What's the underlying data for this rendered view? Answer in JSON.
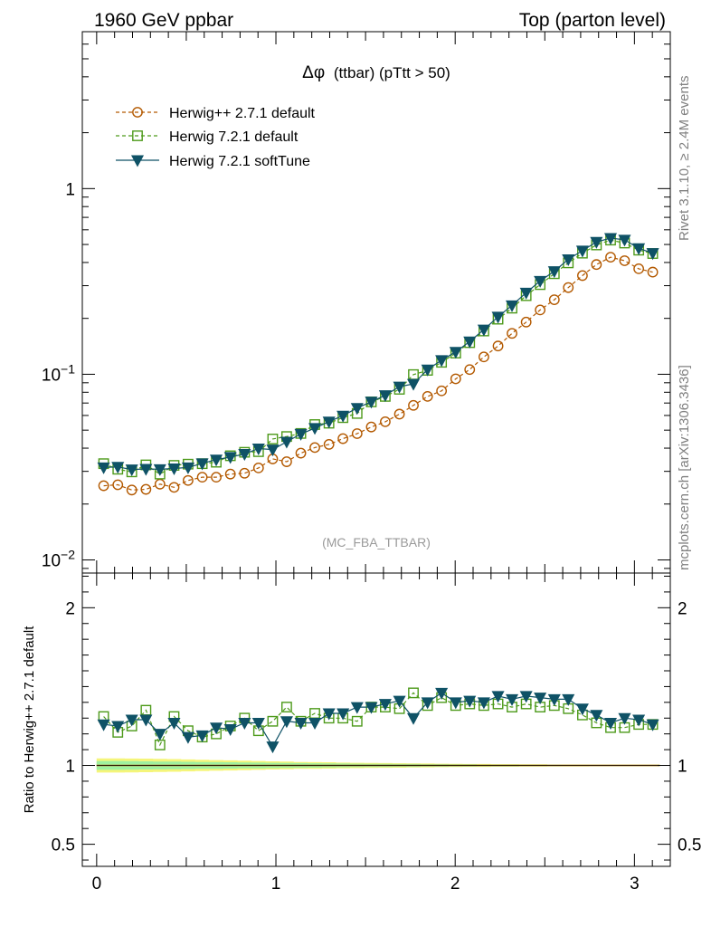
{
  "header": {
    "left": "1960 GeV ppbar",
    "right": "Top (parton level)"
  },
  "side": {
    "rivet": "Rivet 3.1.10, ≥ 2.4M events",
    "mcplots": "mcplots.cern.ch [arXiv:1306.3436]"
  },
  "plot_title": {
    "symbol": "Δφ",
    "text": "(ttbar) (pTtt > 50)"
  },
  "analysis_label": "(MC_FBA_TTBAR)",
  "ratio_ylabel": "Ratio to Herwig++ 2.7.1 default",
  "colors": {
    "herwigpp": "#b35900",
    "herwig721": "#4d9a1a",
    "softtune": "#0f5266",
    "band_outer": "#f5f57a",
    "band_inner": "#9ef0a0"
  },
  "chart_data": [
    {
      "type": "line",
      "panel": "main",
      "yscale": "log",
      "xlim": [
        -0.08,
        3.2
      ],
      "ylim": [
        0.0085,
        7.0
      ],
      "yticks": [
        {
          "value": 0.01,
          "base": "10",
          "exp": "−2"
        },
        {
          "value": 0.1,
          "base": "10",
          "exp": "−1"
        },
        {
          "value": 1,
          "label": "1"
        }
      ],
      "legend_position": "top-left",
      "x": [
        0.039,
        0.118,
        0.196,
        0.275,
        0.353,
        0.432,
        0.51,
        0.589,
        0.667,
        0.746,
        0.825,
        0.903,
        0.982,
        1.06,
        1.139,
        1.217,
        1.296,
        1.374,
        1.453,
        1.532,
        1.61,
        1.689,
        1.767,
        1.846,
        1.924,
        2.003,
        2.081,
        2.16,
        2.239,
        2.317,
        2.396,
        2.474,
        2.553,
        2.631,
        2.71,
        2.788,
        2.867,
        2.945,
        3.024,
        3.102
      ],
      "series": [
        {
          "name": "Herwig++ 2.7.1 default",
          "marker": "circle",
          "linestyle": "dashed",
          "values": [
            0.0251,
            0.0254,
            0.0238,
            0.024,
            0.0256,
            0.0246,
            0.0268,
            0.0279,
            0.0279,
            0.029,
            0.0293,
            0.0313,
            0.035,
            0.0338,
            0.0376,
            0.0403,
            0.0419,
            0.045,
            0.0479,
            0.052,
            0.0555,
            0.061,
            0.068,
            0.076,
            0.0814,
            0.0945,
            0.106,
            0.124,
            0.142,
            0.166,
            0.191,
            0.222,
            0.252,
            0.293,
            0.34,
            0.39,
            0.427,
            0.409,
            0.37,
            0.355
          ]
        },
        {
          "name": "Herwig 7.2.1 default",
          "marker": "open-square",
          "linestyle": "dashed",
          "values": [
            0.033,
            0.0308,
            0.0298,
            0.0325,
            0.029,
            0.0323,
            0.0328,
            0.033,
            0.0336,
            0.0364,
            0.038,
            0.0383,
            0.0448,
            0.0462,
            0.048,
            0.0536,
            0.0545,
            0.0584,
            0.0615,
            0.071,
            0.076,
            0.083,
            0.0996,
            0.105,
            0.116,
            0.13,
            0.148,
            0.171,
            0.198,
            0.227,
            0.265,
            0.304,
            0.348,
            0.398,
            0.449,
            0.497,
            0.528,
            0.509,
            0.466,
            0.447
          ]
        },
        {
          "name": "Herwig 7.2.1 softTune",
          "marker": "filled-triangle-down",
          "linestyle": "solid",
          "values": [
            0.0315,
            0.0317,
            0.0307,
            0.0309,
            0.0308,
            0.0311,
            0.0315,
            0.0331,
            0.0347,
            0.0358,
            0.0372,
            0.0398,
            0.0393,
            0.0433,
            0.0477,
            0.0513,
            0.0556,
            0.0598,
            0.0658,
            0.0711,
            0.0771,
            0.0858,
            0.0887,
            0.106,
            0.119,
            0.132,
            0.15,
            0.174,
            0.204,
            0.235,
            0.275,
            0.318,
            0.359,
            0.416,
            0.463,
            0.516,
            0.541,
            0.53,
            0.477,
            0.449
          ]
        }
      ]
    },
    {
      "type": "line",
      "panel": "ratio",
      "yscale": "linear",
      "xlim": [
        -0.08,
        3.2
      ],
      "ylim": [
        0.36,
        2.22
      ],
      "yticks": [
        {
          "value": 0.5,
          "label": "0.5"
        },
        {
          "value": 1,
          "label": "1"
        },
        {
          "value": 2,
          "label": "2"
        }
      ],
      "xticks": [
        {
          "value": 0,
          "label": "0"
        },
        {
          "value": 1,
          "label": "1"
        },
        {
          "value": 2,
          "label": "2"
        },
        {
          "value": 3,
          "label": "3"
        }
      ],
      "ylabel": "Ratio to Herwig++ 2.7.1 default",
      "band": {
        "outer_halfwidth": [
          0.045,
          0.045,
          0.044,
          0.043,
          0.042,
          0.04,
          0.038,
          0.036,
          0.034,
          0.032,
          0.03,
          0.028,
          0.026,
          0.024,
          0.022,
          0.021,
          0.02,
          0.018,
          0.017,
          0.016,
          0.015,
          0.014,
          0.013,
          0.012,
          0.011,
          0.01,
          0.009,
          0.009,
          0.008,
          0.008,
          0.007,
          0.007,
          0.006,
          0.006,
          0.006,
          0.005,
          0.005,
          0.005,
          0.005,
          0.005
        ],
        "inner_halfwidth": [
          0.028,
          0.028,
          0.027,
          0.026,
          0.025,
          0.024,
          0.023,
          0.022,
          0.021,
          0.02,
          0.019,
          0.018,
          0.017,
          0.016,
          0.015,
          0.014,
          0.013,
          0.012,
          0.011,
          0.01,
          0.01,
          0.009,
          0.009,
          0.008,
          0.008,
          0.007,
          0.007,
          0.006,
          0.006,
          0.006,
          0.005,
          0.005,
          0.005,
          0.004,
          0.004,
          0.004,
          0.004,
          0.004,
          0.004,
          0.004
        ]
      },
      "series": [
        {
          "name": "Herwig 7.2.1 default",
          "values": [
            1.31,
            1.21,
            1.25,
            1.35,
            1.13,
            1.31,
            1.22,
            1.18,
            1.2,
            1.25,
            1.3,
            1.22,
            1.28,
            1.37,
            1.28,
            1.33,
            1.3,
            1.3,
            1.28,
            1.37,
            1.37,
            1.36,
            1.46,
            1.38,
            1.43,
            1.38,
            1.39,
            1.38,
            1.39,
            1.37,
            1.39,
            1.37,
            1.38,
            1.36,
            1.32,
            1.27,
            1.24,
            1.24,
            1.26,
            1.26
          ]
        },
        {
          "name": "Herwig 7.2.1 softTune",
          "values": [
            1.26,
            1.25,
            1.29,
            1.29,
            1.2,
            1.27,
            1.18,
            1.19,
            1.24,
            1.23,
            1.27,
            1.27,
            1.12,
            1.28,
            1.27,
            1.27,
            1.33,
            1.33,
            1.37,
            1.37,
            1.39,
            1.41,
            1.3,
            1.4,
            1.46,
            1.4,
            1.41,
            1.4,
            1.44,
            1.42,
            1.44,
            1.43,
            1.42,
            1.42,
            1.36,
            1.32,
            1.27,
            1.3,
            1.29,
            1.26
          ]
        }
      ]
    }
  ]
}
